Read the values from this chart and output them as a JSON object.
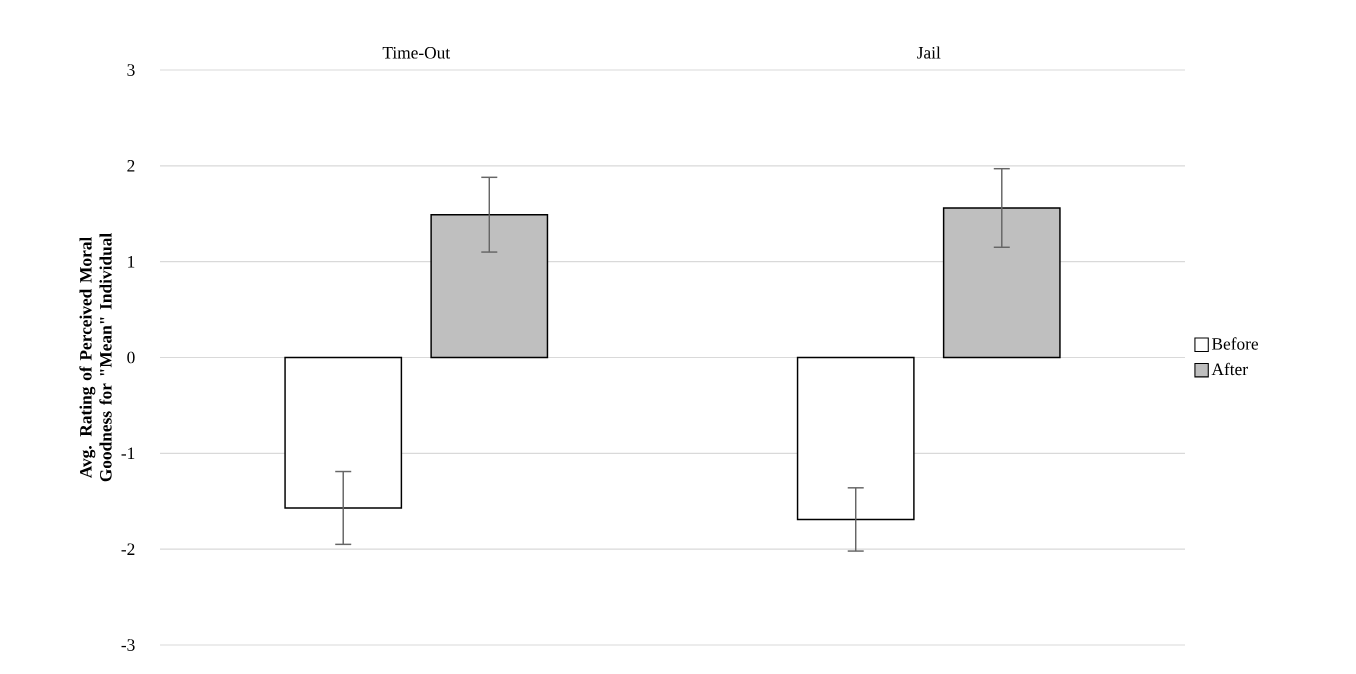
{
  "chart_data": {
    "type": "bar",
    "categories": [
      "Time-Out",
      "Jail"
    ],
    "ylabel": "Avg. Rating of Perceived Moral Goodness for \"Mean\" Individual",
    "series": [
      {
        "name": "Before",
        "color": "#ffffff",
        "values": [
          -1.57,
          -1.69
        ],
        "errors": [
          0.38,
          0.33
        ]
      },
      {
        "name": "After",
        "color": "#bfbfbf",
        "values": [
          1.49,
          1.56
        ],
        "errors": [
          0.39,
          0.41
        ]
      }
    ],
    "ylim": [
      -3,
      3
    ],
    "yticks": [
      -3,
      -2,
      -1,
      0,
      1,
      2,
      3
    ],
    "grid": "y",
    "legend": "right"
  }
}
